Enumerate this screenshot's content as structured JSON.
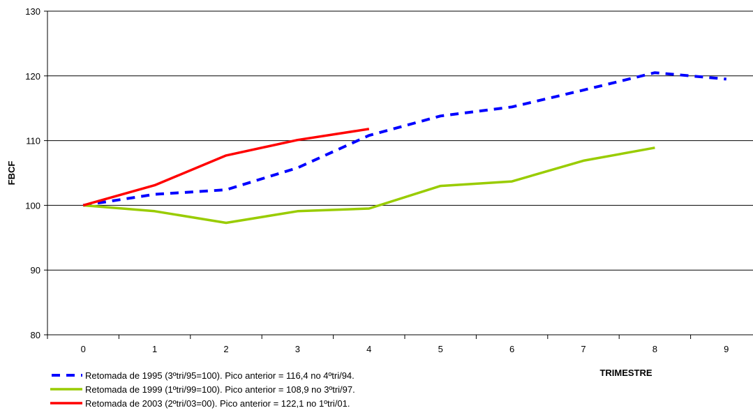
{
  "chart_data": {
    "type": "line",
    "title": "",
    "xlabel": "TRIMESTRE",
    "ylabel": "FBCF",
    "x": [
      0,
      1,
      2,
      3,
      4,
      5,
      6,
      7,
      8,
      9
    ],
    "x_ticks": [
      "0",
      "1",
      "2",
      "3",
      "4",
      "5",
      "6",
      "7",
      "8",
      "9"
    ],
    "y_ticks": [
      "80",
      "90",
      "100",
      "110",
      "120",
      "130"
    ],
    "ylim": [
      80,
      130
    ],
    "xlim": [
      -0.5,
      9.5
    ],
    "grid": "horizontal",
    "legend_position": "bottom-left",
    "series": [
      {
        "name": "Retomada de 1995 (3ºtri/95=100). Pico anterior = 116,4 no 4ºtri/94.",
        "x": [
          0,
          1,
          2,
          3,
          4,
          5,
          6,
          7,
          8,
          9
        ],
        "values": [
          100,
          101.7,
          102.4,
          105.8,
          110.8,
          113.8,
          115.2,
          117.8,
          120.5,
          119.5
        ],
        "color": "#0000FF",
        "style": "dashed"
      },
      {
        "name": "Retomada de 1999 (1ºtri/99=100). Pico anterior = 108,9 no 3ºtri/97.",
        "x": [
          0,
          1,
          2,
          3,
          4,
          5,
          6,
          7,
          8
        ],
        "values": [
          100,
          99.1,
          97.3,
          99.1,
          99.5,
          103.0,
          103.7,
          106.9,
          108.9
        ],
        "color": "#99CC00",
        "style": "solid"
      },
      {
        "name": "Retomada de 2003 (2ºtri/03=00). Pico anterior = 122,1 no 1ºtri/01.",
        "x": [
          0,
          1,
          2,
          3,
          4
        ],
        "values": [
          100,
          103.1,
          107.7,
          110.1,
          111.8
        ],
        "color": "#FF0000",
        "style": "solid"
      }
    ]
  }
}
